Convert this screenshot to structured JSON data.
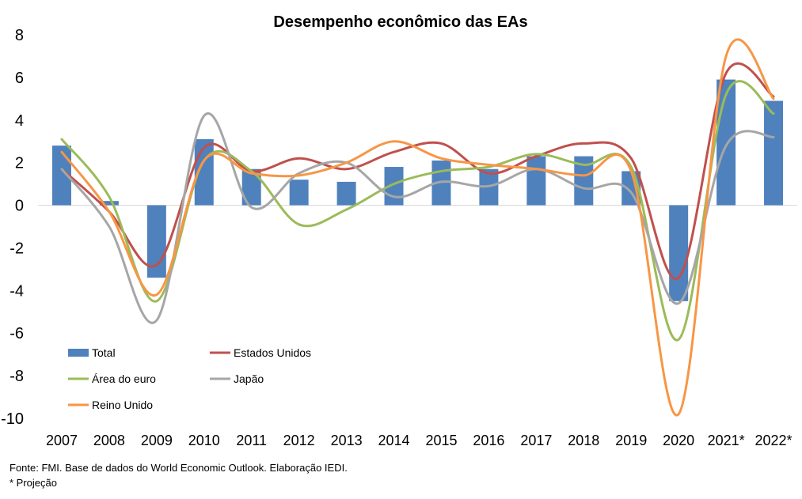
{
  "chart_data": {
    "type": "bar",
    "title": "Desempenho econômico das EAs",
    "categories": [
      "2007",
      "2008",
      "2009",
      "2010",
      "2011",
      "2012",
      "2013",
      "2014",
      "2015",
      "2016",
      "2017",
      "2018",
      "2019",
      "2020",
      "2021*",
      "2022*"
    ],
    "ylim": [
      -10,
      8
    ],
    "yticks": [
      8,
      6,
      4,
      2,
      0,
      -2,
      -4,
      -6,
      -8,
      -10
    ],
    "grid": false,
    "legend_position": "bottom-left",
    "bar_series": {
      "name": "Total",
      "color": "#4f81bd",
      "values": [
        2.8,
        0.2,
        -3.4,
        3.1,
        1.7,
        1.2,
        1.1,
        1.8,
        2.1,
        1.7,
        2.3,
        2.3,
        1.6,
        -4.5,
        5.9,
        4.9
      ]
    },
    "line_series": [
      {
        "name": "Estados Unidos",
        "color": "#c0504d",
        "values": [
          1.7,
          -0.3,
          -2.8,
          2.7,
          1.6,
          2.2,
          1.7,
          2.5,
          2.9,
          1.5,
          2.3,
          2.9,
          2.2,
          -3.4,
          6.2,
          5.1
        ]
      },
      {
        "name": "Área do euro",
        "color": "#9bbb59",
        "values": [
          3.1,
          0.4,
          -4.5,
          2.1,
          1.6,
          -0.9,
          -0.2,
          1.0,
          1.6,
          1.8,
          2.4,
          1.9,
          1.8,
          -6.3,
          5.2,
          4.3
        ]
      },
      {
        "name": "Japão",
        "color": "#a6a6a6",
        "values": [
          1.7,
          -1.0,
          -5.4,
          4.2,
          -0.1,
          1.5,
          2.0,
          0.4,
          1.1,
          0.9,
          1.7,
          0.8,
          0.6,
          -4.6,
          2.8,
          3.2
        ]
      },
      {
        "name": "Reino Unido",
        "color": "#f79646",
        "values": [
          2.5,
          -0.3,
          -4.2,
          2.1,
          1.5,
          1.4,
          2.0,
          3.0,
          2.2,
          1.9,
          1.7,
          1.4,
          1.6,
          -9.8,
          7.0,
          5.0
        ]
      }
    ],
    "legend_order": [
      "Total",
      "Estados Unidos",
      "Área do euro",
      "Japão",
      "Reino Unido"
    ]
  },
  "footnotes": {
    "source": "Fonte: FMI. Base de dados do World Economic Outlook. Elaboração IEDI.",
    "projection": "* Projeção"
  }
}
